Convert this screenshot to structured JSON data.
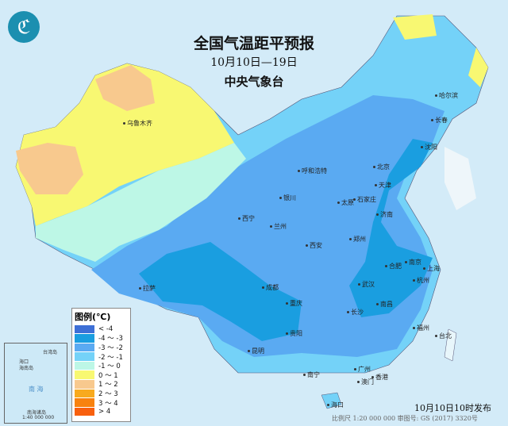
{
  "title": "全国气温距平预报",
  "date_range": "10月10日—19日",
  "issuer": "中央气象台",
  "logo_icon": "cma-logo",
  "legend": {
    "title": "图例(℃)",
    "items": [
      {
        "label": "< -4",
        "color": "#3d6fd6"
      },
      {
        "label": "-4 ～ -3",
        "color": "#1a9ee0"
      },
      {
        "label": "-3 ～ -2",
        "color": "#5aaaf2"
      },
      {
        "label": "-2 ～ -1",
        "color": "#74d2f8"
      },
      {
        "label": "-1 ～ 0",
        "color": "#bdf7e6"
      },
      {
        "label": "0 ～ 1",
        "color": "#f8f872"
      },
      {
        "label": "1 ～ 2",
        "color": "#f8c98e"
      },
      {
        "label": "2 ～ 3",
        "color": "#f8aa1e"
      },
      {
        "label": "3 ～ 4",
        "color": "#f8820e"
      },
      {
        "label": "> 4",
        "color": "#f8600e"
      }
    ]
  },
  "cities": [
    {
      "name": "乌鲁木齐"
    },
    {
      "name": "哈尔滨"
    },
    {
      "name": "长春"
    },
    {
      "name": "沈阳"
    },
    {
      "name": "呼和浩特"
    },
    {
      "name": "北京"
    },
    {
      "name": "天津"
    },
    {
      "name": "银川"
    },
    {
      "name": "太原"
    },
    {
      "name": "石家庄"
    },
    {
      "name": "西宁"
    },
    {
      "name": "兰州"
    },
    {
      "name": "济南"
    },
    {
      "name": "郑州"
    },
    {
      "name": "西安"
    },
    {
      "name": "合肥"
    },
    {
      "name": "南京"
    },
    {
      "name": "上海"
    },
    {
      "name": "成都"
    },
    {
      "name": "武汉"
    },
    {
      "name": "杭州"
    },
    {
      "name": "拉萨"
    },
    {
      "name": "重庆"
    },
    {
      "name": "长沙"
    },
    {
      "name": "南昌"
    },
    {
      "name": "贵阳"
    },
    {
      "name": "福州"
    },
    {
      "name": "台北"
    },
    {
      "name": "昆明"
    },
    {
      "name": "南宁"
    },
    {
      "name": "广州"
    },
    {
      "name": "香港"
    },
    {
      "name": "澳门"
    },
    {
      "name": "海口"
    }
  ],
  "inset": {
    "labels": [
      "台湾岛",
      "海口",
      "海南岛",
      "南 海",
      "南海诸岛",
      "1:40 000 000"
    ]
  },
  "footer": "比例尺 1:20 000 000    审图号: GS (2017) 3320号",
  "published": "10月10日10时发布"
}
